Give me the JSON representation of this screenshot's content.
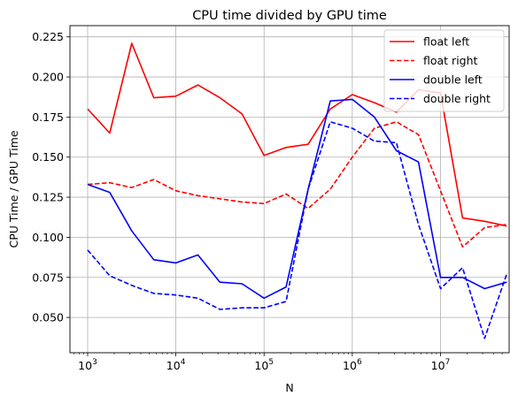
{
  "chart_data": {
    "type": "line",
    "title": "CPU time divided by GPU time",
    "xlabel": "N",
    "ylabel": "CPU Time / GPU Time",
    "xscale": "log",
    "xlim": [
      630,
      60000000
    ],
    "ylim": [
      0.028,
      0.232
    ],
    "grid": true,
    "legend_position": "top-right",
    "x_ticks": [
      {
        "value": 1000,
        "base": "10",
        "exp": "3"
      },
      {
        "value": 10000,
        "base": "10",
        "exp": "4"
      },
      {
        "value": 100000,
        "base": "10",
        "exp": "5"
      },
      {
        "value": 1000000,
        "base": "10",
        "exp": "6"
      },
      {
        "value": 10000000,
        "base": "10",
        "exp": "7"
      }
    ],
    "y_ticks": [
      0.05,
      0.075,
      0.1,
      0.125,
      0.15,
      0.175,
      0.2,
      0.225
    ],
    "y_tick_labels": [
      "0.050",
      "0.075",
      "0.100",
      "0.125",
      "0.150",
      "0.175",
      "0.200",
      "0.225"
    ],
    "x": [
      1000,
      1778,
      3162,
      5623,
      10000,
      17783,
      31623,
      56234,
      100000,
      177828,
      316228,
      562341,
      1000000,
      1778279,
      3162278,
      5623413,
      10000000,
      17782794,
      31622777,
      56234133
    ],
    "series": [
      {
        "name": "float left",
        "color": "#ff0000",
        "dash": "solid",
        "values": [
          0.18,
          0.165,
          0.221,
          0.187,
          0.188,
          0.195,
          0.187,
          0.177,
          0.151,
          0.156,
          0.158,
          0.18,
          0.189,
          0.184,
          0.178,
          0.192,
          0.19,
          0.112,
          0.11,
          0.107
        ]
      },
      {
        "name": "float right",
        "color": "#ff0000",
        "dash": "dashed",
        "values": [
          0.133,
          0.134,
          0.131,
          0.136,
          0.129,
          0.126,
          0.124,
          0.122,
          0.121,
          0.127,
          0.118,
          0.13,
          0.15,
          0.168,
          0.172,
          0.164,
          0.129,
          0.094,
          0.106,
          0.108
        ]
      },
      {
        "name": "double left",
        "color": "#0000ff",
        "dash": "solid",
        "values": [
          0.133,
          0.128,
          0.104,
          0.086,
          0.084,
          0.089,
          0.072,
          0.071,
          0.062,
          0.069,
          0.13,
          0.185,
          0.186,
          0.175,
          0.154,
          0.147,
          0.075,
          0.075,
          0.068,
          0.072
        ]
      },
      {
        "name": "double right",
        "color": "#0000ff",
        "dash": "dashed",
        "values": [
          0.092,
          0.076,
          0.07,
          0.065,
          0.064,
          0.062,
          0.055,
          0.056,
          0.056,
          0.06,
          0.13,
          0.172,
          0.168,
          0.16,
          0.159,
          0.108,
          0.068,
          0.081,
          0.037,
          0.077
        ]
      }
    ]
  }
}
